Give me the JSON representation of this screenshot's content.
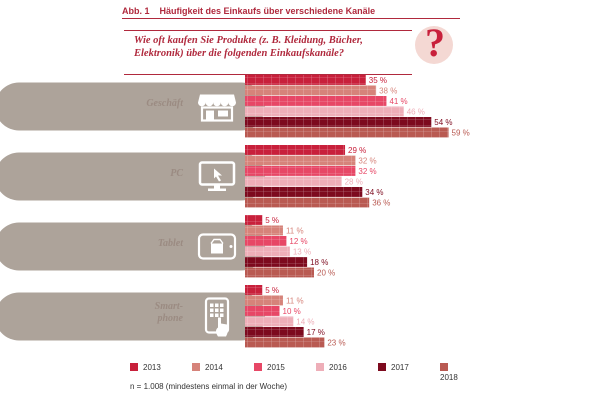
{
  "figure": {
    "number": "Abb. 1",
    "title": "Häufigkeit des Einkaufs über verschiedene Kanäle",
    "question": "Wie oft kaufen Sie Produkte (z. B. Kleidung, Bücher, Elektronik) über die folgenden Einkaufskanäle?",
    "question_mark": "?",
    "note": "n = 1.008 (mindestens einmal in der Woche)"
  },
  "colors": {
    "accent": "#b0293d",
    "panel": "#ada39a",
    "2013": "#c8203b",
    "2014": "#d6837a",
    "2015": "#e74766",
    "2016": "#eeaeb8",
    "2017": "#7d0a1e",
    "2018": "#b95a52"
  },
  "chart_data": {
    "type": "bar",
    "orientation": "horizontal",
    "title": "Häufigkeit des Einkaufs über verschiedene Kanäle",
    "categories": [
      "Geschäft",
      "PC",
      "Tablet",
      "Smart-phone"
    ],
    "icons": [
      "store-icon",
      "monitor-icon",
      "tablet-icon",
      "smartphone-icon"
    ],
    "value_suffix": "%",
    "xlim": [
      0,
      60
    ],
    "grid": false,
    "legend": "bottom",
    "series": [
      {
        "name": "2013",
        "values": [
          35,
          29,
          5,
          5
        ]
      },
      {
        "name": "2014",
        "values": [
          38,
          32,
          11,
          11
        ]
      },
      {
        "name": "2015",
        "values": [
          41,
          32,
          12,
          10
        ]
      },
      {
        "name": "2016",
        "values": [
          46,
          28,
          13,
          14
        ]
      },
      {
        "name": "2017",
        "values": [
          54,
          34,
          18,
          17
        ]
      },
      {
        "name": "2018",
        "values": [
          59,
          36,
          20,
          23
        ]
      }
    ]
  }
}
